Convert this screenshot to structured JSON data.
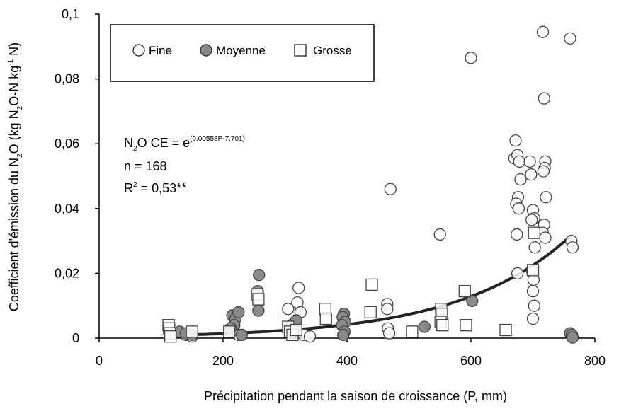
{
  "chart_data": {
    "type": "scatter",
    "xlabel": "Précipitation pendant la saison de croissance (P, mm)",
    "ylabel_parts": {
      "main": "Coefficient d'émission du N",
      "sub2a": "2",
      "mid": "O (kg N",
      "sub2b": "2",
      "tail": "O-N kg",
      "sup": "-1",
      "end": " N)"
    },
    "xlim": [
      0,
      800
    ],
    "ylim": [
      0,
      0.1
    ],
    "x_ticks": [
      0,
      200,
      400,
      600,
      800
    ],
    "y_ticks": [
      0,
      0.02,
      0.04,
      0.06,
      0.08,
      0.1
    ],
    "x_tick_labels": [
      "0",
      "200",
      "400",
      "600",
      "800"
    ],
    "y_tick_labels": [
      "0",
      "0,02",
      "0,04",
      "0,06",
      "0,08",
      "0,1"
    ],
    "grid": false,
    "legend_position": "top-left",
    "annotation": {
      "line1_prefix": "N",
      "line1_sub": "2",
      "line1_mid": "O CE = e",
      "line1_sup": "(0,00558P-7,701)",
      "line2": "n = 168",
      "line3_prefix": "R",
      "line3_sup": "2",
      "line3_tail": " = 0,53**"
    },
    "series": [
      {
        "name": "Fine",
        "marker": "circle-open",
        "points": [
          [
            140,
            0.001
          ],
          [
            150,
            0.0005
          ],
          [
            215,
            0.002
          ],
          [
            225,
            0.001
          ],
          [
            305,
            0.009
          ],
          [
            310,
            0.004
          ],
          [
            315,
            0.002
          ],
          [
            320,
            0.011
          ],
          [
            322,
            0.0155
          ],
          [
            325,
            0.008
          ],
          [
            330,
            0.001
          ],
          [
            340,
            0.0005
          ],
          [
            465,
            0.0105
          ],
          [
            465,
            0.009
          ],
          [
            466,
            0.003
          ],
          [
            468,
            0.0015
          ],
          [
            470,
            0.046
          ],
          [
            550,
            0.032
          ],
          [
            600,
            0.0865
          ],
          [
            672,
            0.061
          ],
          [
            670,
            0.0555
          ],
          [
            675,
            0.0565
          ],
          [
            678,
            0.0545
          ],
          [
            680,
            0.049
          ],
          [
            676,
            0.0435
          ],
          [
            673,
            0.0415
          ],
          [
            677,
            0.04
          ],
          [
            674,
            0.032
          ],
          [
            675,
            0.02
          ],
          [
            695,
            0.0545
          ],
          [
            697,
            0.0505
          ],
          [
            700,
            0.0395
          ],
          [
            702,
            0.037
          ],
          [
            698,
            0.0365
          ],
          [
            703,
            0.028
          ],
          [
            699,
            0.0205
          ],
          [
            701,
            0.018
          ],
          [
            700,
            0.0145
          ],
          [
            702,
            0.01
          ],
          [
            700,
            0.006
          ],
          [
            716,
            0.0945
          ],
          [
            718,
            0.074
          ],
          [
            720,
            0.0545
          ],
          [
            719,
            0.0525
          ],
          [
            717,
            0.0515
          ],
          [
            721,
            0.0435
          ],
          [
            718,
            0.035
          ],
          [
            716,
            0.0325
          ],
          [
            720,
            0.031
          ],
          [
            760,
            0.0925
          ],
          [
            762,
            0.03
          ],
          [
            764,
            0.028
          ]
        ]
      },
      {
        "name": "Moyenne",
        "marker": "circle-filled",
        "points": [
          [
            130,
            0.002
          ],
          [
            140,
            0.0015
          ],
          [
            150,
            0.001
          ],
          [
            215,
            0.007
          ],
          [
            220,
            0.006
          ],
          [
            225,
            0.008
          ],
          [
            218,
            0.004
          ],
          [
            212,
            0.003
          ],
          [
            230,
            0.001
          ],
          [
            258,
            0.0195
          ],
          [
            256,
            0.0145
          ],
          [
            257,
            0.0085
          ],
          [
            312,
            0.004
          ],
          [
            316,
            0.0035
          ],
          [
            318,
            0.0055
          ],
          [
            395,
            0.0075
          ],
          [
            393,
            0.0065
          ],
          [
            397,
            0.005
          ],
          [
            392,
            0.004
          ],
          [
            396,
            0.002
          ],
          [
            394,
            0.001
          ],
          [
            525,
            0.0035
          ],
          [
            602,
            0.0115
          ],
          [
            760,
            0.0015
          ],
          [
            763,
            0.001
          ],
          [
            764,
            0.0002
          ]
        ]
      },
      {
        "name": "Grosse",
        "marker": "square-open",
        "points": [
          [
            112,
            0.004
          ],
          [
            113,
            0.003
          ],
          [
            114,
            0.0015
          ],
          [
            115,
            0.0005
          ],
          [
            150,
            0.002
          ],
          [
            210,
            0.002
          ],
          [
            255,
            0.0135
          ],
          [
            257,
            0.012
          ],
          [
            305,
            0.0035
          ],
          [
            308,
            0.002
          ],
          [
            312,
            0.001
          ],
          [
            318,
            0.0025
          ],
          [
            365,
            0.009
          ],
          [
            366,
            0.006
          ],
          [
            440,
            0.0165
          ],
          [
            438,
            0.008
          ],
          [
            505,
            0.002
          ],
          [
            552,
            0.009
          ],
          [
            553,
            0.0075
          ],
          [
            551,
            0.005
          ],
          [
            554,
            0.004
          ],
          [
            590,
            0.0145
          ],
          [
            592,
            0.004
          ],
          [
            656,
            0.0025
          ],
          [
            702,
            0.0325
          ],
          [
            700,
            0.021
          ]
        ]
      }
    ],
    "trendline": {
      "name": "N2O CE = e^(0,00558P-7,701)",
      "coef_a": 0.00558,
      "coef_b": -7.701,
      "x_from": 110,
      "x_to": 760
    }
  }
}
